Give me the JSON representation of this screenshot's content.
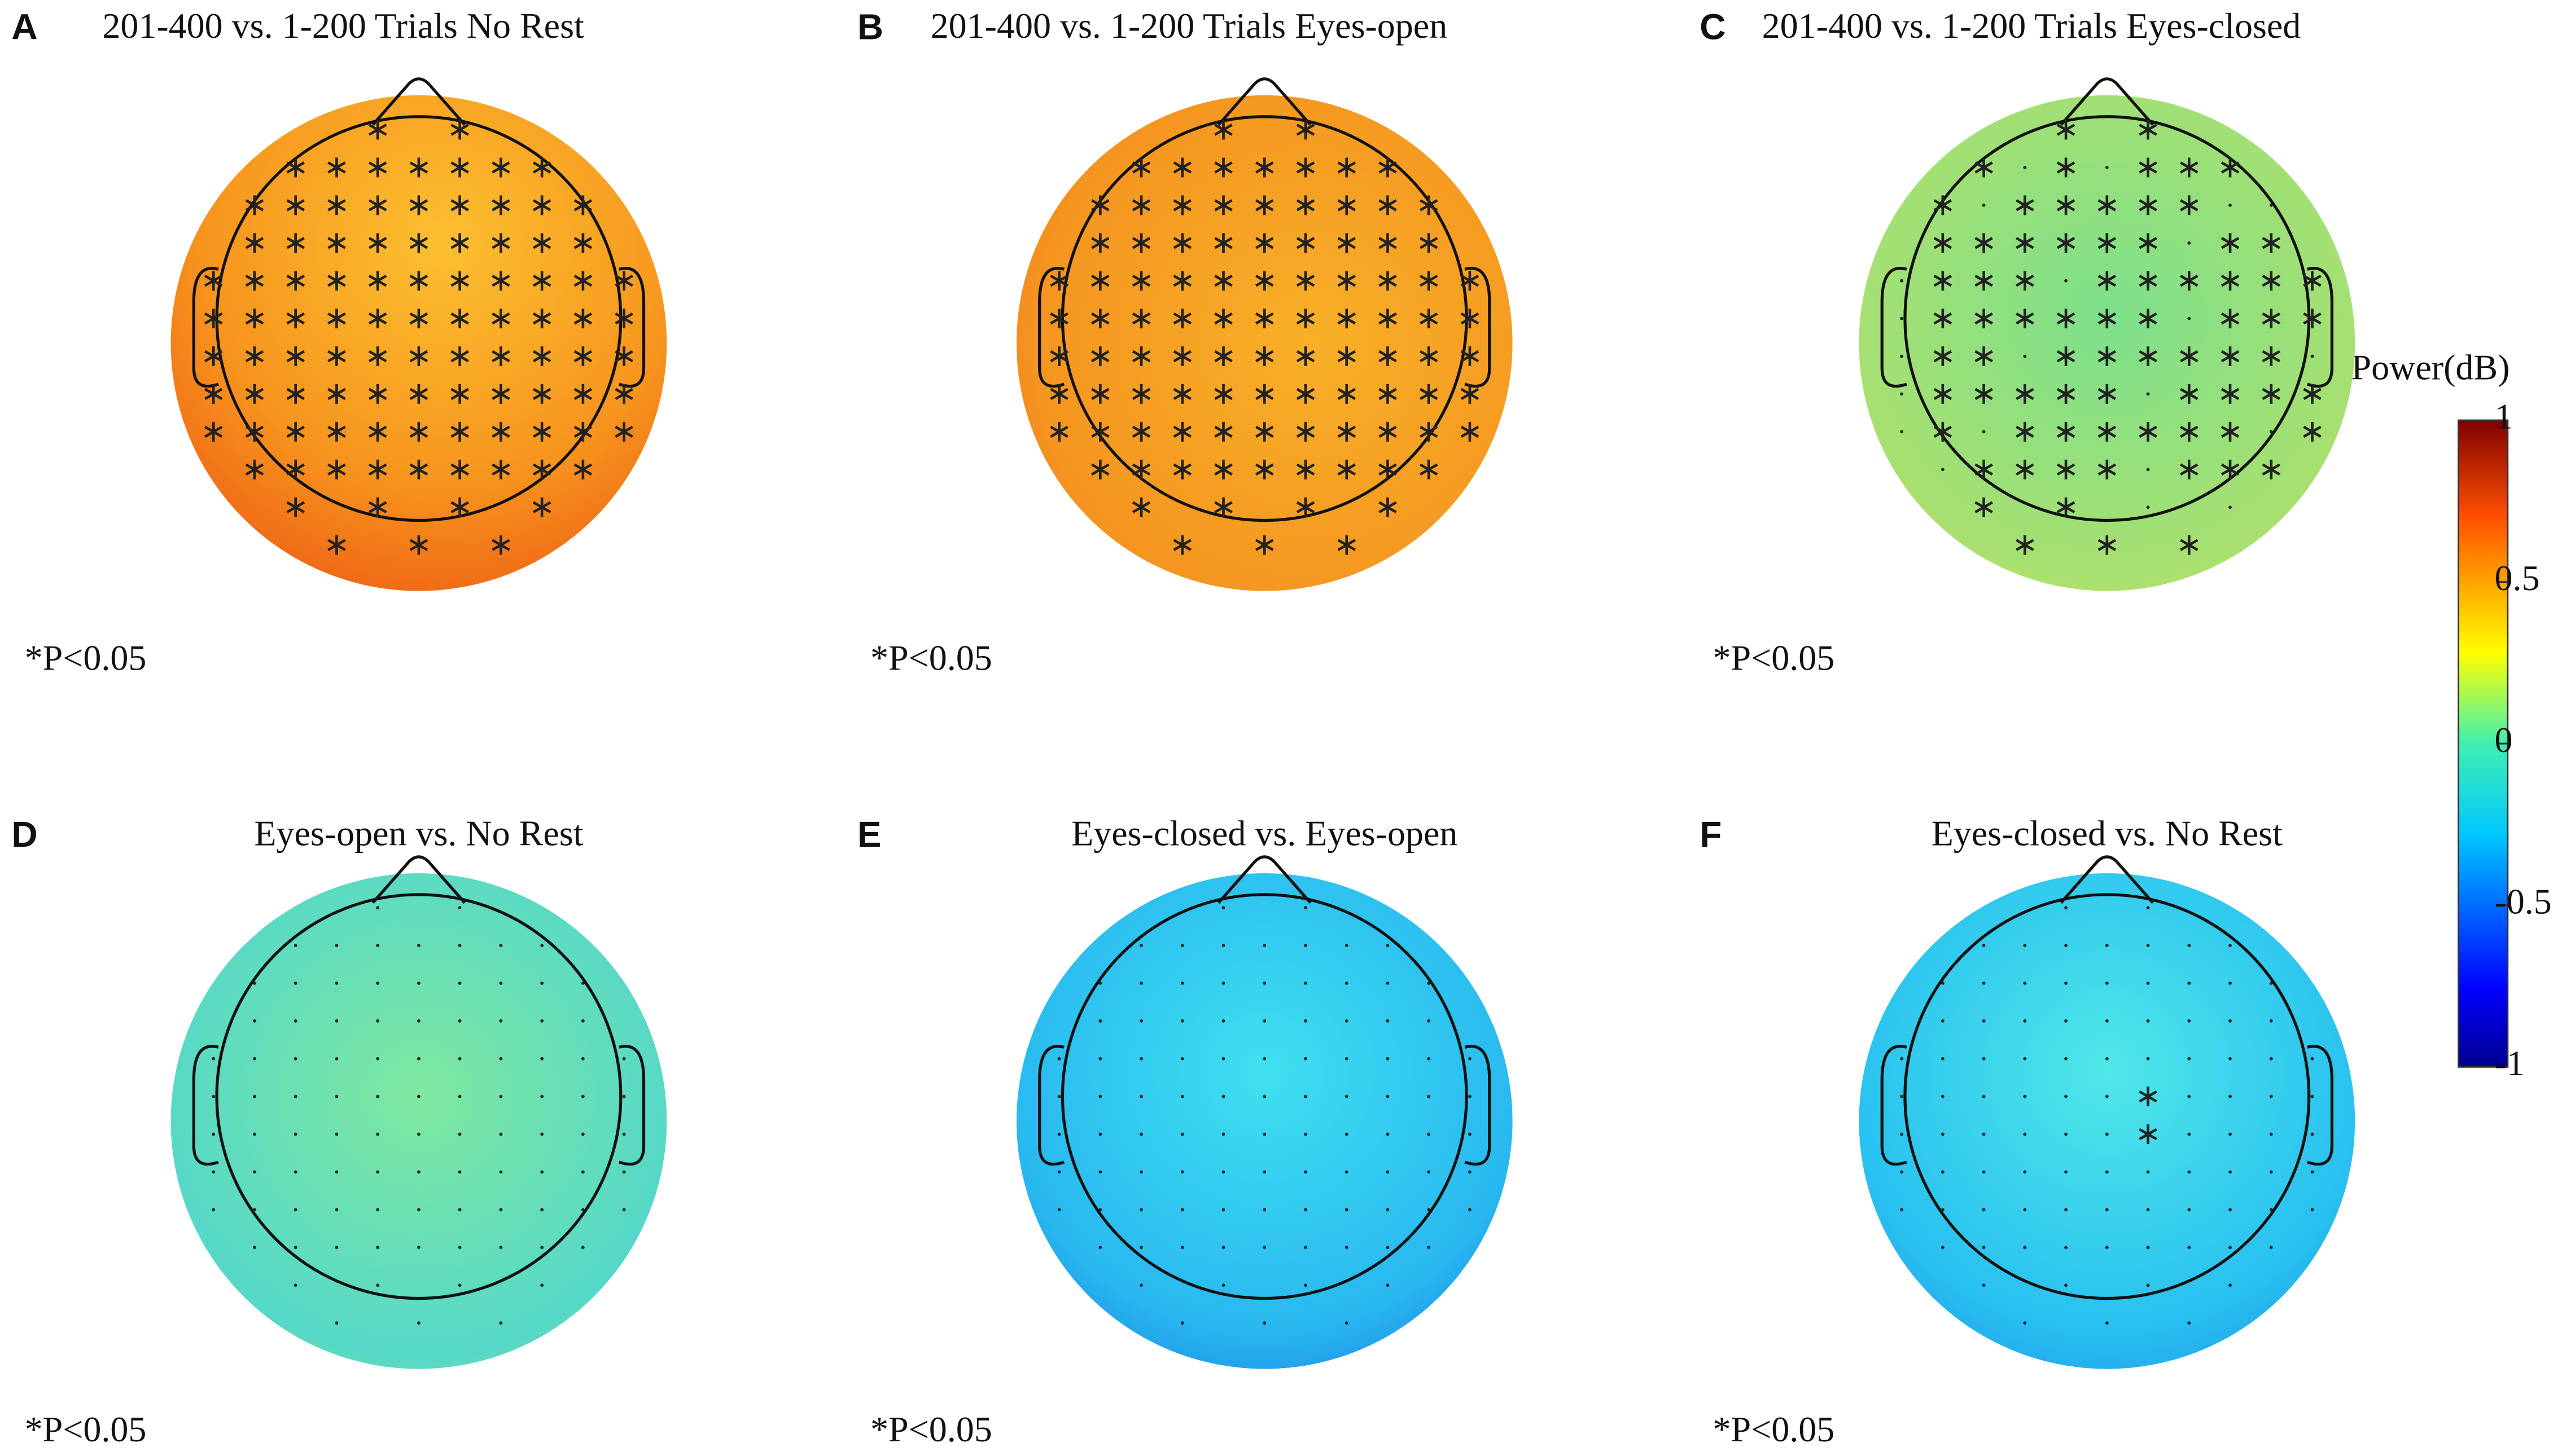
{
  "panels": [
    {
      "label": "A",
      "title": "201-400 vs. 1-200 Trials No Rest",
      "note": "*P<0.05"
    },
    {
      "label": "B",
      "title": "201-400 vs. 1-200 Trials Eyes-open",
      "note": "*P<0.05"
    },
    {
      "label": "C",
      "title": "201-400 vs. 1-200 Trials Eyes-closed",
      "note": "*P<0.05"
    },
    {
      "label": "D",
      "title": "Eyes-open vs. No Rest",
      "note": "*P<0.05"
    },
    {
      "label": "E",
      "title": "Eyes-closed vs. Eyes-open",
      "note": "*P<0.05"
    },
    {
      "label": "F",
      "title": "Eyes-closed vs. No Rest",
      "note": "*P<0.05"
    }
  ],
  "colorbar": {
    "label": "Power(dB)",
    "lim": [
      -1,
      1
    ],
    "ticks": [
      1,
      0.5,
      0,
      -0.5,
      -1
    ]
  }
}
